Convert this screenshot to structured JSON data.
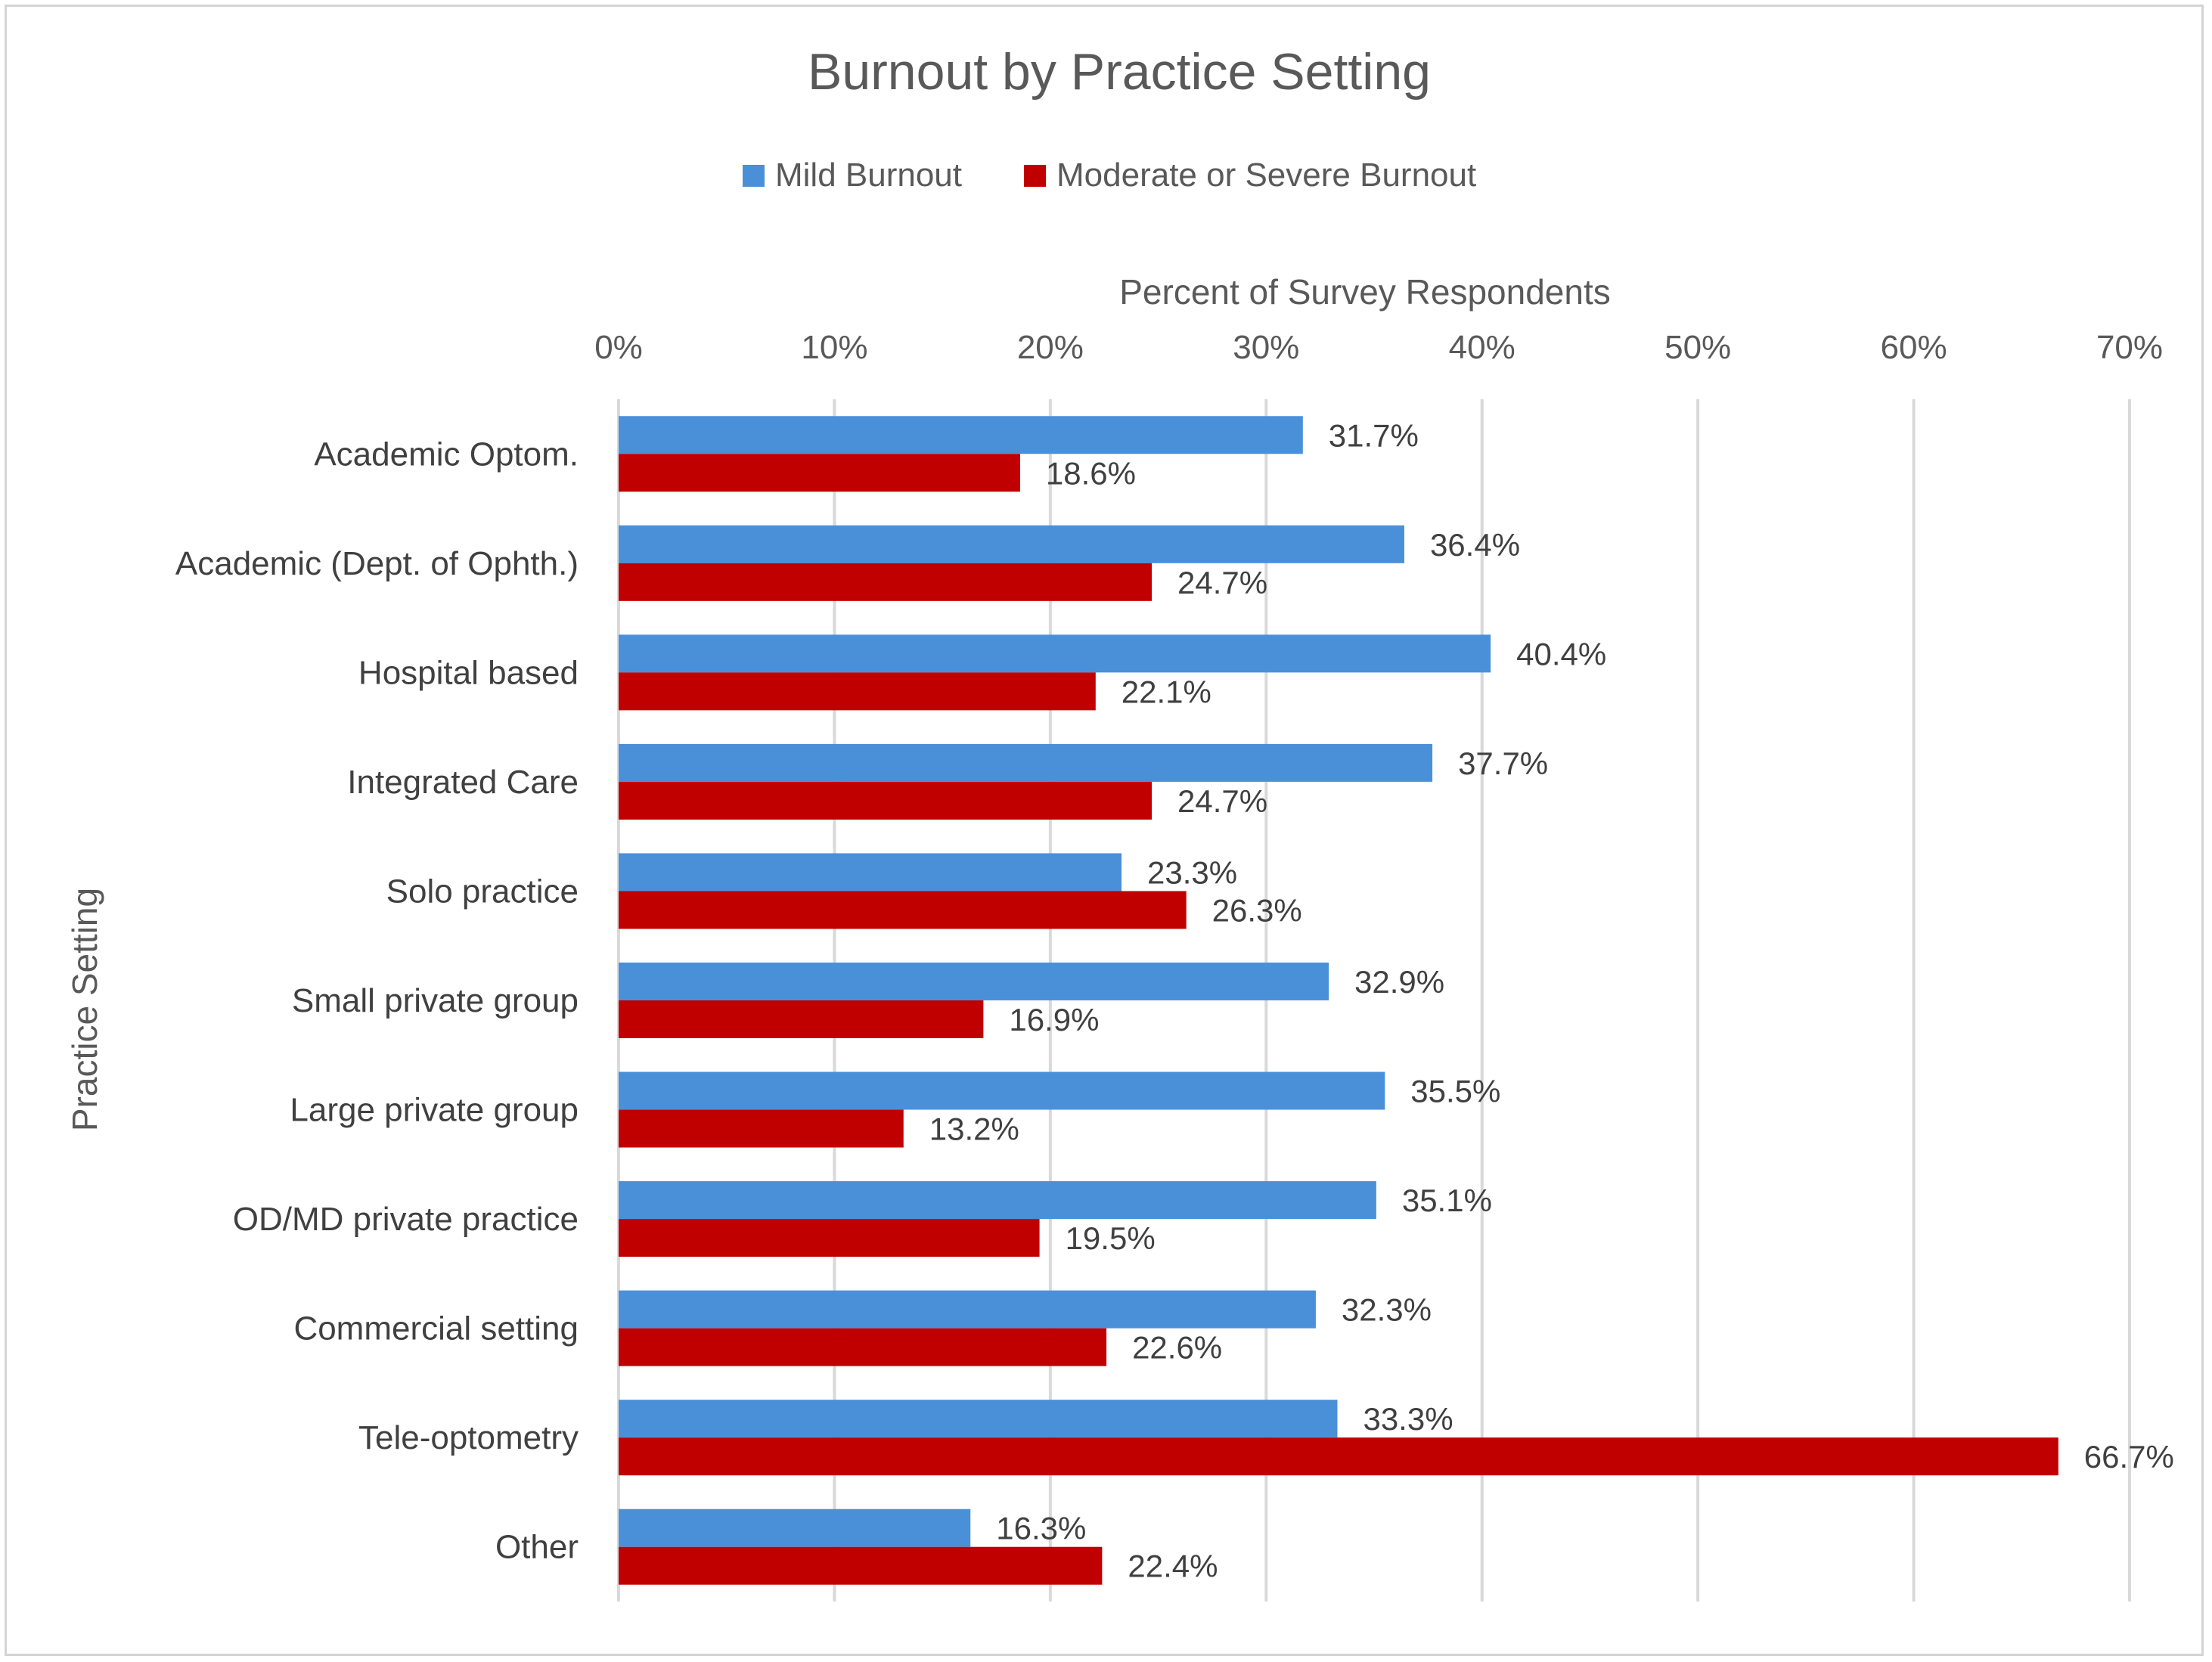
{
  "chart_data": {
    "type": "bar",
    "orientation": "horizontal",
    "title": "Burnout by Practice Setting",
    "xlabel": "Percent of Survey Respondents",
    "ylabel": "Practice Setting",
    "xlim": [
      0,
      70
    ],
    "x_ticks": [
      "0%",
      "10%",
      "20%",
      "30%",
      "40%",
      "50%",
      "60%",
      "70%"
    ],
    "x_axis_position": "top",
    "grid": true,
    "legend_position": "top",
    "categories": [
      "Academic Optom.",
      "Academic (Dept. of Ophth.)",
      "Hospital based",
      "Integrated Care",
      "Solo practice",
      "Small private group",
      "Large private group",
      "OD/MD private practice",
      "Commercial setting",
      "Tele-optometry",
      "Other"
    ],
    "series": [
      {
        "name": "Mild Burnout",
        "color": "#4a90d9",
        "values": [
          31.7,
          36.4,
          40.4,
          37.7,
          23.3,
          32.9,
          35.5,
          35.1,
          32.3,
          33.3,
          16.3
        ],
        "labels": [
          "31.7%",
          "36.4%",
          "40.4%",
          "37.7%",
          "23.3%",
          "32.9%",
          "35.5%",
          "35.1%",
          "32.3%",
          "33.3%",
          "16.3%"
        ]
      },
      {
        "name": "Moderate or Severe Burnout",
        "color": "#c00000",
        "values": [
          18.6,
          24.7,
          22.1,
          24.7,
          26.3,
          16.9,
          13.2,
          19.5,
          22.6,
          66.7,
          22.4
        ],
        "labels": [
          "18.6%",
          "24.7%",
          "22.1%",
          "24.7%",
          "26.3%",
          "16.9%",
          "13.2%",
          "19.5%",
          "22.6%",
          "66.7%",
          "22.4%"
        ]
      }
    ]
  }
}
